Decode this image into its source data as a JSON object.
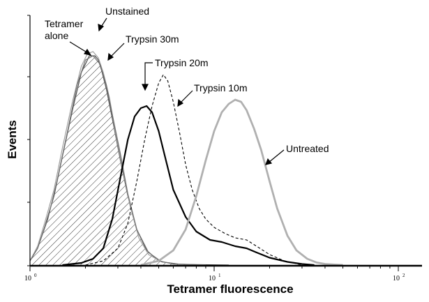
{
  "chart_data": {
    "type": "area",
    "xlabel": "Tetramer fluorescence",
    "ylabel": "Events",
    "x_scale": "log",
    "xlim": [
      1,
      120
    ],
    "x_ticks": [
      {
        "base": "10",
        "exp": "0",
        "value": 1
      },
      {
        "base": "10",
        "exp": "1",
        "value": 10
      },
      {
        "base": "10",
        "exp": "2",
        "value": 100
      }
    ],
    "series": [
      {
        "name": "Unstained",
        "style": "hatched fill, dark gray outline",
        "x": [
          1.0,
          1.1,
          1.2,
          1.35,
          1.5,
          1.7,
          1.9,
          2.1,
          2.25,
          2.35,
          2.45,
          2.6,
          2.8,
          3.1,
          3.4,
          3.8,
          4.3,
          5.0,
          6.0,
          8.0,
          12.0
        ],
        "y": [
          0.02,
          0.08,
          0.18,
          0.33,
          0.52,
          0.74,
          0.92,
          1.0,
          1.0,
          0.98,
          0.93,
          0.84,
          0.7,
          0.5,
          0.33,
          0.17,
          0.07,
          0.02,
          0.005,
          0.002,
          0.0
        ]
      },
      {
        "name": "Tetramer alone",
        "style": "light gray solid",
        "x": [
          1.0,
          1.1,
          1.2,
          1.35,
          1.5,
          1.7,
          1.9,
          2.05,
          2.2,
          2.35,
          2.5,
          2.7,
          2.9,
          3.2,
          3.5,
          3.9,
          4.4,
          5.2,
          6.5,
          9.0
        ],
        "y": [
          0.02,
          0.09,
          0.2,
          0.36,
          0.56,
          0.78,
          0.95,
          1.01,
          1.02,
          0.99,
          0.92,
          0.8,
          0.64,
          0.45,
          0.28,
          0.13,
          0.05,
          0.015,
          0.004,
          0.0
        ]
      },
      {
        "name": "Trypsin 30m",
        "style": "gray solid",
        "x": [
          1.0,
          1.1,
          1.25,
          1.4,
          1.6,
          1.8,
          2.0,
          2.2,
          2.4,
          2.6,
          2.8,
          3.1,
          3.4,
          3.8,
          4.4,
          5.2,
          6.5,
          9.0
        ],
        "y": [
          0.02,
          0.08,
          0.22,
          0.4,
          0.64,
          0.86,
          0.98,
          1.0,
          0.96,
          0.86,
          0.72,
          0.53,
          0.34,
          0.17,
          0.06,
          0.015,
          0.004,
          0.0
        ]
      },
      {
        "name": "Trypsin 20m",
        "style": "black solid",
        "x": [
          1.5,
          1.9,
          2.2,
          2.5,
          2.8,
          3.1,
          3.4,
          3.7,
          4.0,
          4.3,
          4.6,
          5.0,
          5.4,
          6.0,
          7.0,
          8.0,
          9.5,
          11.0,
          13.0,
          15.0,
          17.0,
          20.0,
          25.0,
          30.0,
          35.0
        ],
        "y": [
          0.0,
          0.01,
          0.03,
          0.08,
          0.22,
          0.42,
          0.6,
          0.71,
          0.75,
          0.76,
          0.73,
          0.64,
          0.52,
          0.36,
          0.23,
          0.16,
          0.12,
          0.11,
          0.09,
          0.08,
          0.06,
          0.035,
          0.015,
          0.005,
          0.0
        ]
      },
      {
        "name": "Trypsin 10m",
        "style": "black dashed",
        "x": [
          2.0,
          2.5,
          3.0,
          3.4,
          3.8,
          4.2,
          4.6,
          5.0,
          5.3,
          5.6,
          6.0,
          6.5,
          7.0,
          7.6,
          8.3,
          9.0,
          10.0,
          11.5,
          13.0,
          15.0,
          17.0,
          20.0,
          24.0,
          30.0
        ],
        "y": [
          0.0,
          0.02,
          0.08,
          0.2,
          0.4,
          0.6,
          0.76,
          0.87,
          0.91,
          0.88,
          0.78,
          0.63,
          0.48,
          0.36,
          0.27,
          0.22,
          0.18,
          0.15,
          0.13,
          0.12,
          0.09,
          0.05,
          0.02,
          0.0
        ]
      },
      {
        "name": "Untreated",
        "style": "light gray thick solid",
        "x": [
          4.0,
          5.0,
          6.0,
          7.0,
          8.0,
          9.0,
          10.0,
          11.0,
          12.0,
          13.0,
          14.0,
          15.0,
          16.5,
          18.0,
          20.0,
          22.0,
          25.0,
          28.0,
          32.0,
          36.0,
          40.0,
          45.0,
          50.0
        ],
        "y": [
          0.0,
          0.02,
          0.07,
          0.17,
          0.33,
          0.5,
          0.64,
          0.73,
          0.77,
          0.79,
          0.78,
          0.74,
          0.65,
          0.55,
          0.4,
          0.27,
          0.14,
          0.07,
          0.03,
          0.012,
          0.005,
          0.002,
          0.0
        ]
      }
    ],
    "colors": {
      "Unstained": "#555555",
      "Tetramer alone": "#a0a0a0",
      "Trypsin 30m": "#707070",
      "Trypsin 20m": "#000000",
      "Trypsin 10m": "#000000",
      "Untreated": "#b0b0b0",
      "hatch": "#333333"
    }
  }
}
